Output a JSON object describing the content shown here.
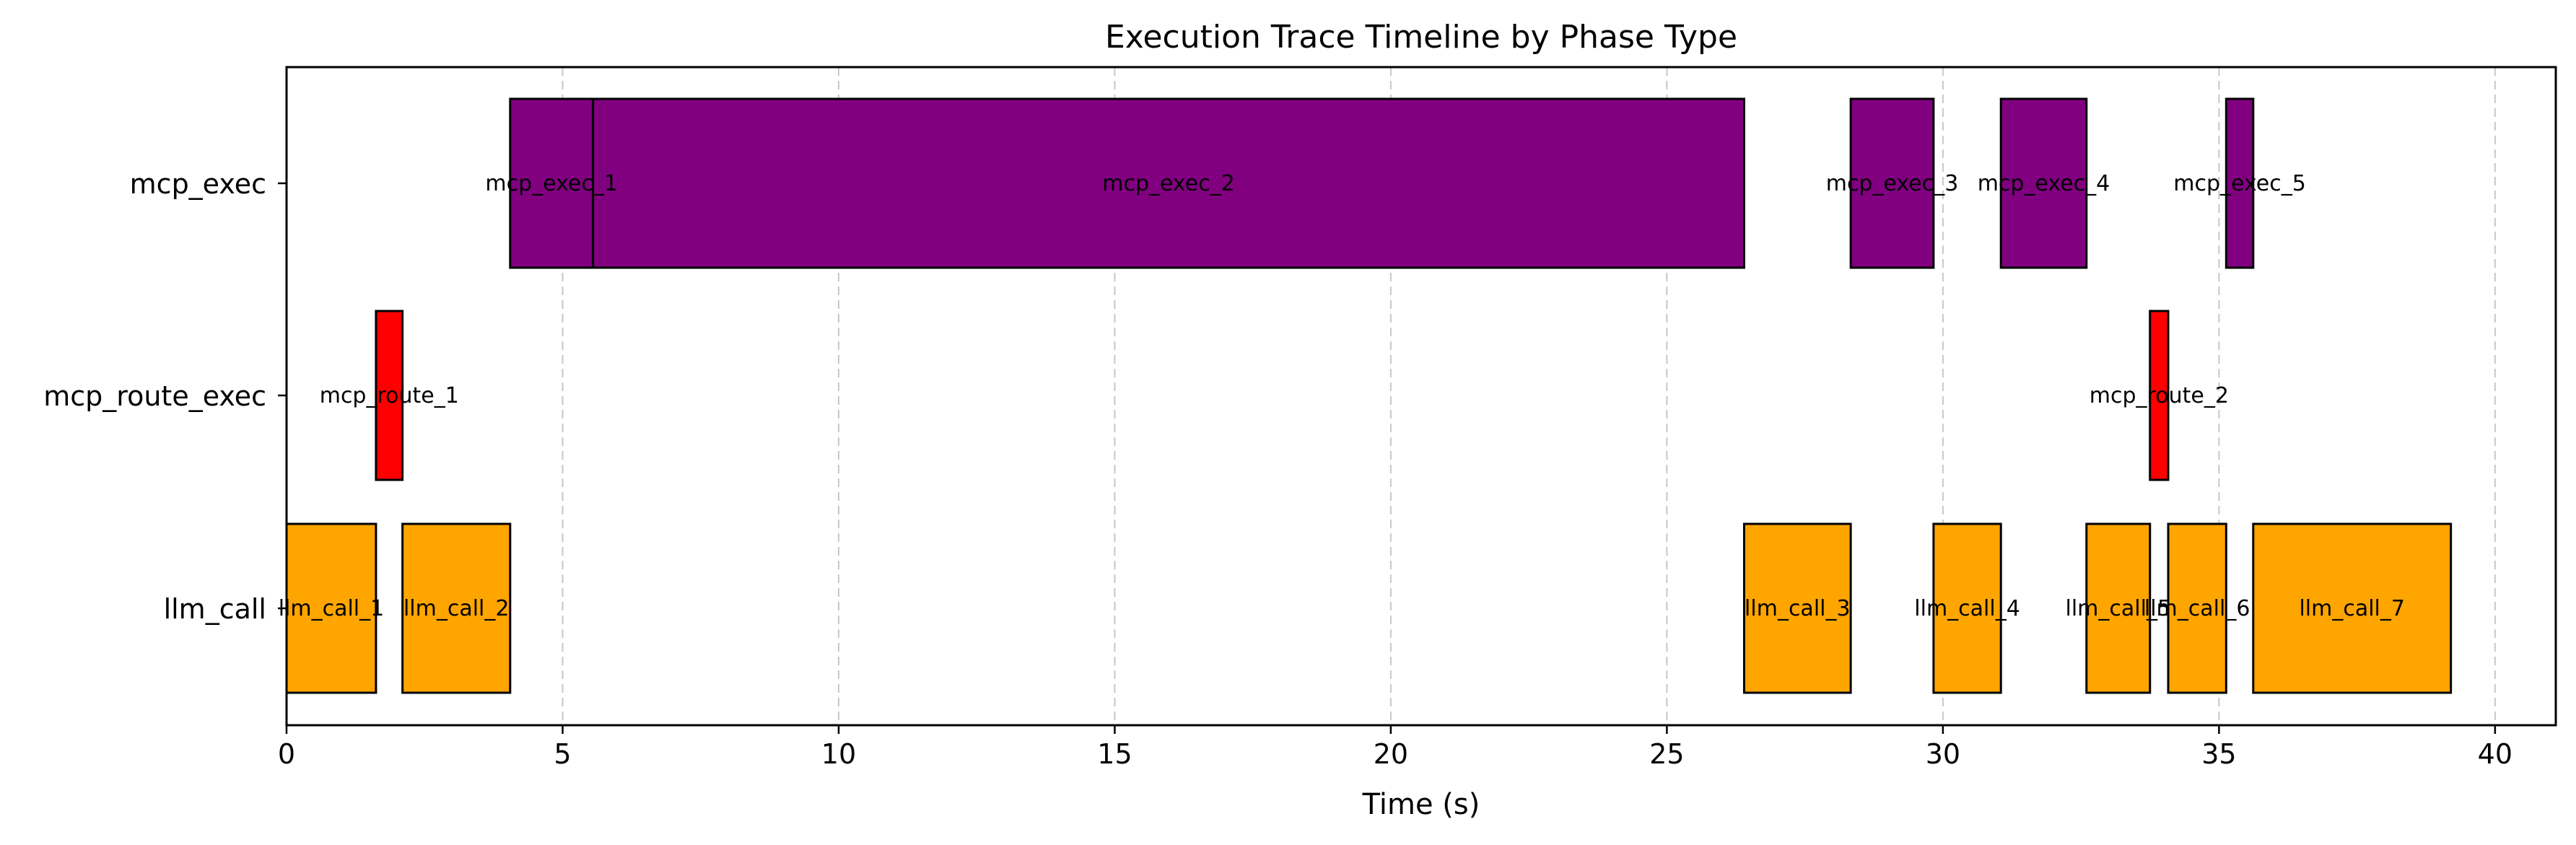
{
  "chart_data": {
    "type": "gantt",
    "title": "Execution Trace Timeline by Phase Type",
    "xlabel": "Time (s)",
    "ylabel": "",
    "xlim": [
      0,
      41.1
    ],
    "x_ticks": [
      0,
      5,
      10,
      15,
      20,
      25,
      30,
      35,
      40
    ],
    "x_tick_labels": [
      "0",
      "5",
      "10",
      "15",
      "20",
      "25",
      "30",
      "35",
      "40"
    ],
    "grid": "vertical dashed",
    "categories": [
      "mcp_exec",
      "mcp_route_exec",
      "llm_call"
    ],
    "colors": {
      "mcp_exec": "#800080",
      "mcp_route_exec": "#ff0000",
      "llm_call": "#ffa500",
      "edge": "#000000",
      "grid": "#c8c8c8"
    },
    "tasks": [
      {
        "category": "llm_call",
        "label": "llm_call_1",
        "start": 0.0,
        "end": 1.62
      },
      {
        "category": "mcp_route_exec",
        "label": "mcp_route_1",
        "start": 1.62,
        "end": 2.1
      },
      {
        "category": "llm_call",
        "label": "llm_call_2",
        "start": 2.1,
        "end": 4.05
      },
      {
        "category": "mcp_exec",
        "label": "mcp_exec_1",
        "start": 4.05,
        "end": 5.55
      },
      {
        "category": "mcp_exec",
        "label": "mcp_exec_2",
        "start": 5.55,
        "end": 26.4
      },
      {
        "category": "llm_call",
        "label": "llm_call_3",
        "start": 26.4,
        "end": 28.33
      },
      {
        "category": "mcp_exec",
        "label": "mcp_exec_3",
        "start": 28.33,
        "end": 29.83
      },
      {
        "category": "llm_call",
        "label": "llm_call_4",
        "start": 29.83,
        "end": 31.05
      },
      {
        "category": "mcp_exec",
        "label": "mcp_exec_4",
        "start": 31.05,
        "end": 32.6
      },
      {
        "category": "llm_call",
        "label": "llm_call_5",
        "start": 32.6,
        "end": 33.75
      },
      {
        "category": "mcp_route_exec",
        "label": "mcp_route_2",
        "start": 33.75,
        "end": 34.08
      },
      {
        "category": "llm_call",
        "label": "llm_call_6",
        "start": 34.08,
        "end": 35.13
      },
      {
        "category": "mcp_exec",
        "label": "mcp_exec_5",
        "start": 35.13,
        "end": 35.62
      },
      {
        "category": "llm_call",
        "label": "llm_call_7",
        "start": 35.62,
        "end": 39.2
      }
    ]
  }
}
